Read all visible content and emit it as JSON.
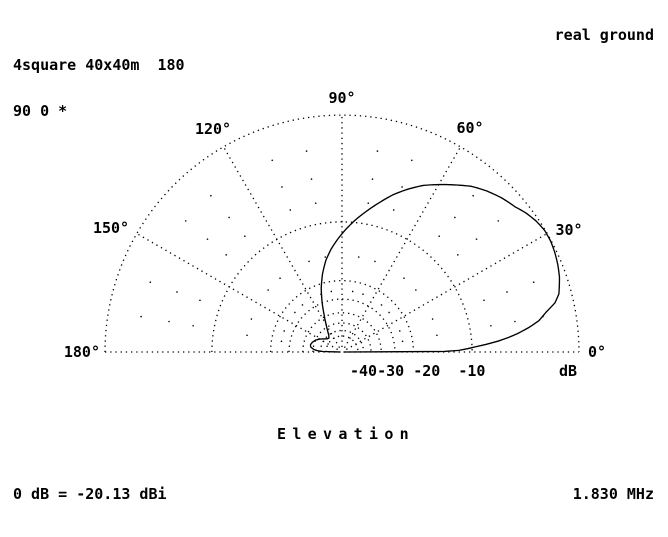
{
  "window": {
    "background": "#ffffff",
    "foreground": "#000000"
  },
  "header": {
    "line1": "4square 40x40m  180",
    "line2": "90 0 *",
    "right": "real ground"
  },
  "footer": {
    "left": "0 dB = -20.13 dBi",
    "right": "1.830 MHz"
  },
  "axis": {
    "title": "Elevation",
    "db_scale_text": "-40-30 -20  -10",
    "db_unit": "dB",
    "angle_labels": [
      {
        "deg": 0,
        "label": "0°"
      },
      {
        "deg": 30,
        "label": "30°"
      },
      {
        "deg": 60,
        "label": "60°"
      },
      {
        "deg": 90,
        "label": "90°"
      },
      {
        "deg": 120,
        "label": "120°"
      },
      {
        "deg": 150,
        "label": "150°"
      },
      {
        "deg": 180,
        "label": "180°"
      }
    ],
    "radial_lines_deg": [
      30,
      60,
      90,
      120,
      150
    ],
    "rings_db": [
      -10,
      -20,
      -25,
      -30,
      -35,
      -40,
      -45
    ],
    "sparse_dot_db": [
      -2.5,
      -5,
      -7.5,
      -15,
      -22.5
    ],
    "sparse_dot_angle_step_deg": 10
  },
  "chart_data": {
    "type": "line",
    "polar": true,
    "plane": "elevation",
    "title": "Elevation",
    "angle_unit": "degrees",
    "angle_range": [
      0,
      180
    ],
    "radial_unit": "dB",
    "radial_ticks": [
      0,
      -10,
      -20,
      -30,
      -40
    ],
    "radial_scale": {
      "type": "logarithmic",
      "frac_at_minus_10db": 0.549
    },
    "normalization_text": "0 dB = -20.13 dBi",
    "frequency_text": "1.830 MHz",
    "ground_text": "real ground",
    "antenna_text": "4square 40x40m  180",
    "peak_elevation_deg": 28,
    "series": [
      {
        "name": "total-gain-pattern",
        "points_el_db": [
          [
            0,
            -80
          ],
          [
            0.3,
            -14
          ],
          [
            0.8,
            -11.8
          ],
          [
            1.5,
            -10.6
          ],
          [
            2.2,
            -9.6
          ],
          [
            3,
            -8.3
          ],
          [
            4,
            -6.9
          ],
          [
            5,
            -5.8
          ],
          [
            6,
            -4.9
          ],
          [
            7.5,
            -3.8
          ],
          [
            9,
            -2.9
          ],
          [
            11,
            -2.2
          ],
          [
            13,
            -1.35
          ],
          [
            15,
            -0.9
          ],
          [
            17,
            -0.7
          ],
          [
            19,
            -0.5
          ],
          [
            22,
            -0.3
          ],
          [
            25,
            -0.15
          ],
          [
            28,
            -0.05
          ],
          [
            31,
            -0.05
          ],
          [
            34,
            -0.2
          ],
          [
            37,
            -0.45
          ],
          [
            40,
            -0.8
          ],
          [
            44,
            -1.1
          ],
          [
            48,
            -1.5
          ],
          [
            52,
            -2.0
          ],
          [
            56,
            -2.7
          ],
          [
            60,
            -3.4
          ],
          [
            64,
            -4.1
          ],
          [
            68,
            -5.0
          ],
          [
            72,
            -6.0
          ],
          [
            76,
            -7.2
          ],
          [
            80,
            -8.4
          ],
          [
            84,
            -9.6
          ],
          [
            88,
            -10.9
          ],
          [
            92,
            -12.3
          ],
          [
            96,
            -13.8
          ],
          [
            100,
            -15.6
          ],
          [
            104,
            -18
          ],
          [
            108,
            -21
          ],
          [
            112,
            -25
          ],
          [
            116,
            -29.5
          ],
          [
            120,
            -33.5
          ],
          [
            124,
            -37
          ],
          [
            128,
            -40
          ],
          [
            133,
            -42
          ],
          [
            138,
            -41.5
          ],
          [
            144,
            -39.5
          ],
          [
            150,
            -37
          ],
          [
            156,
            -35
          ],
          [
            162,
            -33.8
          ],
          [
            167,
            -33.2
          ],
          [
            171,
            -33.6
          ],
          [
            175,
            -35.5
          ],
          [
            177,
            -38
          ],
          [
            178.5,
            -42
          ],
          [
            180,
            -80
          ]
        ]
      }
    ]
  }
}
